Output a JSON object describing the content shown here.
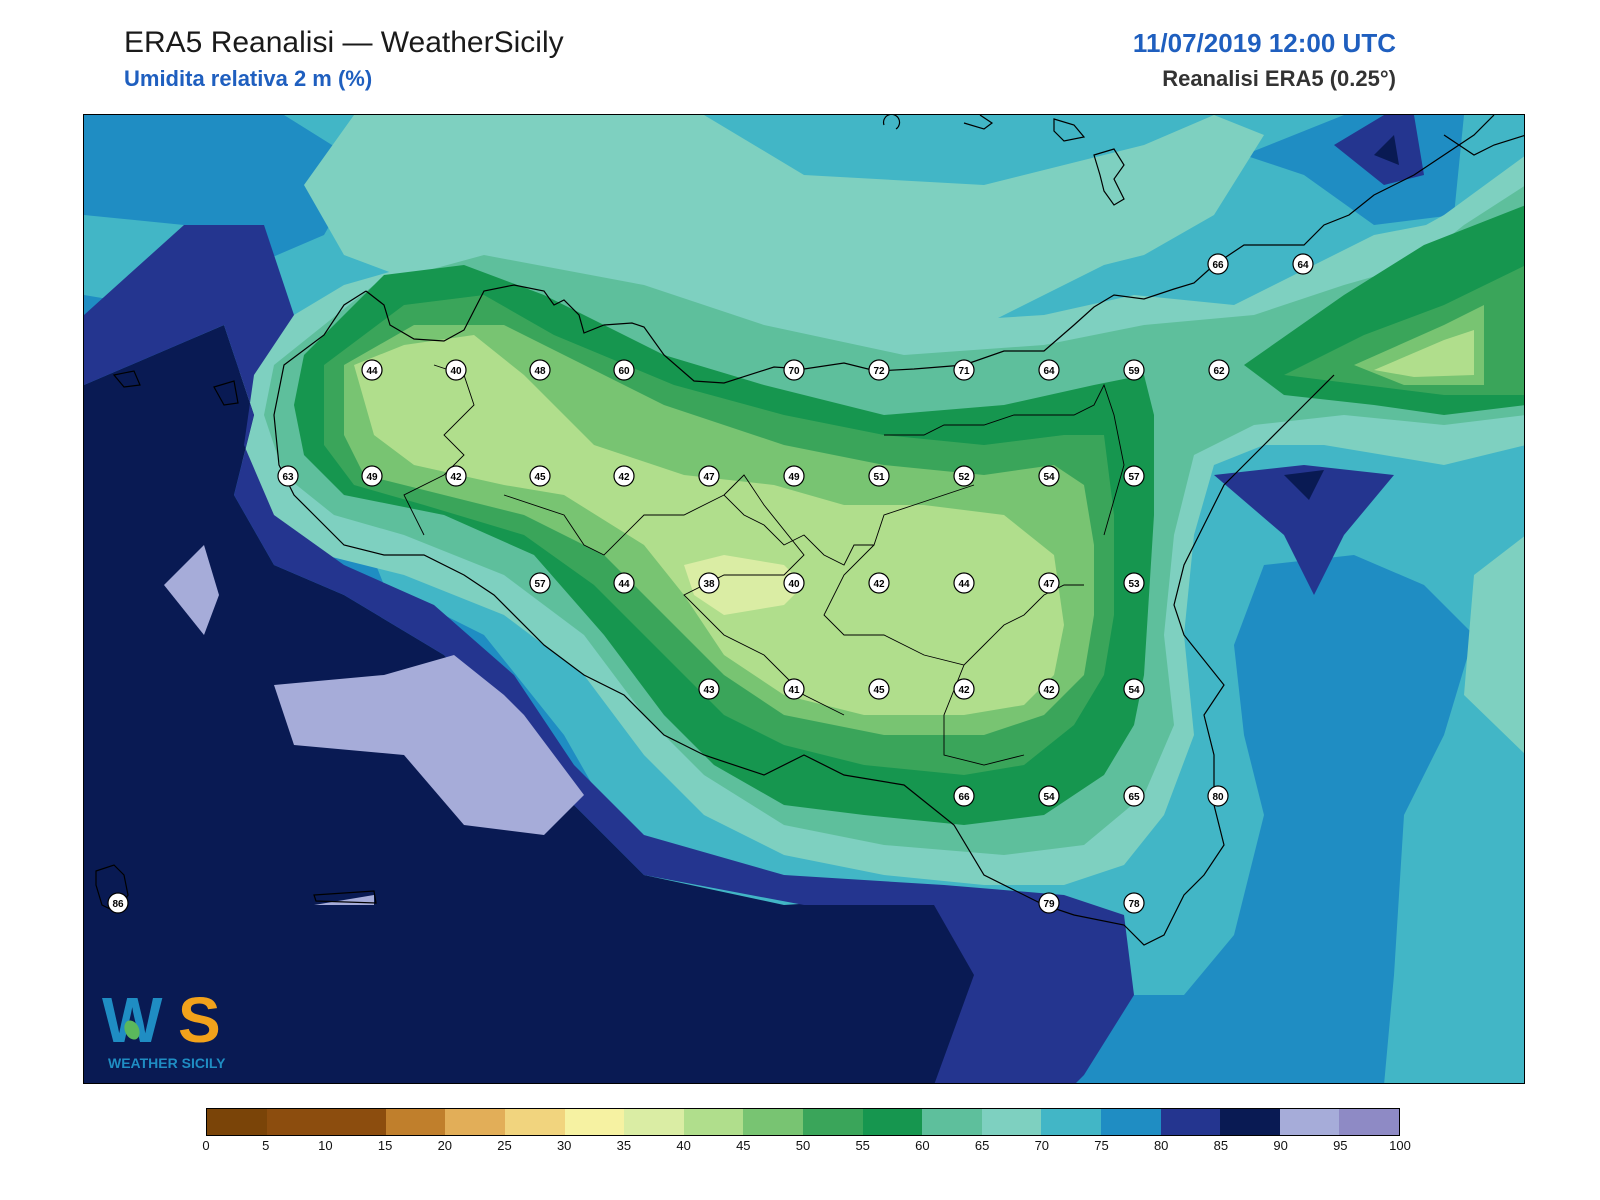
{
  "header": {
    "title": "ERA5 Reanalisi — WeatherSicily",
    "subtitle": "Umidita relativa 2 m (%)",
    "datetime": "11/07/2019 12:00 UTC",
    "source": "Reanalisi ERA5 (0.25°)"
  },
  "map": {
    "variable": "relative humidity at 2 m",
    "unit": "%",
    "station_values": [
      {
        "label": "44"
      },
      {
        "label": "40"
      },
      {
        "label": "48"
      },
      {
        "label": "60"
      },
      {
        "label": "70"
      },
      {
        "label": "72"
      },
      {
        "label": "71"
      },
      {
        "label": "64"
      },
      {
        "label": "59"
      },
      {
        "label": "62"
      },
      {
        "label": "66"
      },
      {
        "label": "64"
      },
      {
        "label": "63"
      },
      {
        "label": "49"
      },
      {
        "label": "42"
      },
      {
        "label": "45"
      },
      {
        "label": "42"
      },
      {
        "label": "47"
      },
      {
        "label": "49"
      },
      {
        "label": "51"
      },
      {
        "label": "52"
      },
      {
        "label": "54"
      },
      {
        "label": "57"
      },
      {
        "label": "57"
      },
      {
        "label": "44"
      },
      {
        "label": "38"
      },
      {
        "label": "40"
      },
      {
        "label": "42"
      },
      {
        "label": "44"
      },
      {
        "label": "47"
      },
      {
        "label": "53"
      },
      {
        "label": "43"
      },
      {
        "label": "41"
      },
      {
        "label": "45"
      },
      {
        "label": "42"
      },
      {
        "label": "42"
      },
      {
        "label": "54"
      },
      {
        "label": "66"
      },
      {
        "label": "54"
      },
      {
        "label": "65"
      },
      {
        "label": "80"
      },
      {
        "label": "86"
      },
      {
        "label": "79"
      },
      {
        "label": "78"
      }
    ]
  },
  "logo": {
    "letters": "WS",
    "text": "WEATHER SICILY"
  },
  "colorbar": {
    "ticks": [
      "0",
      "5",
      "10",
      "15",
      "20",
      "25",
      "30",
      "35",
      "40",
      "45",
      "50",
      "55",
      "60",
      "65",
      "70",
      "75",
      "80",
      "85",
      "90",
      "95",
      "100"
    ],
    "colors": [
      "#7a4408",
      "#8c4d0e",
      "#8c4d0e",
      "#c07f2c",
      "#e2ae58",
      "#f1d47e",
      "#f6f2a2",
      "#daeda4",
      "#b0de8c",
      "#78c472",
      "#3aa55a",
      "#16964f",
      "#5ebf9c",
      "#7ed0c0",
      "#42b6c6",
      "#1f8dc3",
      "#24358f",
      "#091a53",
      "#a6acd9",
      "#8e8ac5"
    ]
  }
}
